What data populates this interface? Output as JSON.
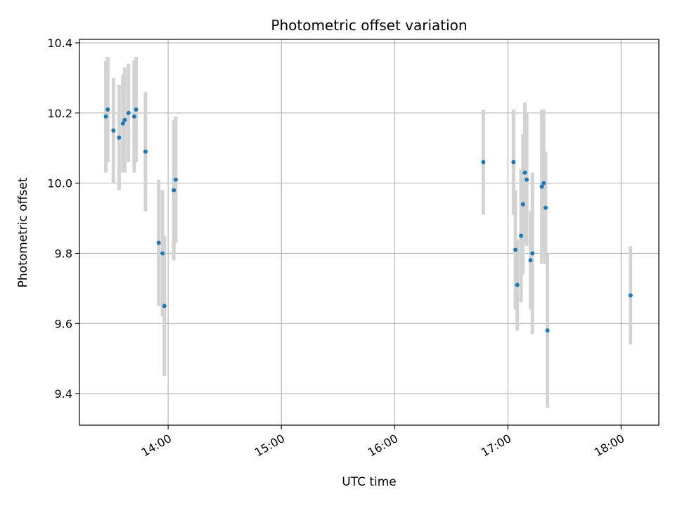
{
  "chart_data": {
    "type": "scatter",
    "title": "Photometric offset variation",
    "xlabel": "UTC time",
    "ylabel": "Photometric offset",
    "x_tick_labels": [
      "14:00",
      "15:00",
      "16:00",
      "17:00",
      "18:00"
    ],
    "x_ticks": [
      "14:00",
      "15:00",
      "16:00",
      "17:00",
      "18:00"
    ],
    "xlim": [
      "13:13",
      "18:20"
    ],
    "y_ticks": [
      9.4,
      9.6,
      9.8,
      10.0,
      10.2,
      10.4
    ],
    "y_tick_labels": [
      "9.4",
      "9.6",
      "9.8",
      "10.0",
      "10.2",
      "10.4"
    ],
    "ylim": [
      9.31,
      10.41
    ],
    "grid": true,
    "marker_color": "#1f77b4",
    "errorbar_color": "#d3d3d3",
    "points": [
      {
        "x": "13:27",
        "y": 10.19,
        "err": 0.16
      },
      {
        "x": "13:28",
        "y": 10.21,
        "err": 0.15
      },
      {
        "x": "13:31",
        "y": 10.15,
        "err": 0.15
      },
      {
        "x": "13:34",
        "y": 10.13,
        "err": 0.15
      },
      {
        "x": "13:36",
        "y": 10.17,
        "err": 0.14
      },
      {
        "x": "13:37",
        "y": 10.18,
        "err": 0.15
      },
      {
        "x": "13:39",
        "y": 10.2,
        "err": 0.14
      },
      {
        "x": "13:42",
        "y": 10.19,
        "err": 0.16
      },
      {
        "x": "13:43",
        "y": 10.21,
        "err": 0.15
      },
      {
        "x": "13:48",
        "y": 10.09,
        "err": 0.17
      },
      {
        "x": "13:55",
        "y": 9.83,
        "err": 0.18
      },
      {
        "x": "13:57",
        "y": 9.8,
        "err": 0.18
      },
      {
        "x": "13:58",
        "y": 9.65,
        "err": 0.2
      },
      {
        "x": "14:03",
        "y": 9.98,
        "err": 0.2
      },
      {
        "x": "14:04",
        "y": 10.01,
        "err": 0.18
      },
      {
        "x": "16:47",
        "y": 10.06,
        "err": 0.15
      },
      {
        "x": "17:03",
        "y": 10.06,
        "err": 0.15
      },
      {
        "x": "17:04",
        "y": 9.81,
        "err": 0.17
      },
      {
        "x": "17:05",
        "y": 9.71,
        "err": 0.13
      },
      {
        "x": "17:07",
        "y": 9.85,
        "err": 0.19
      },
      {
        "x": "17:08",
        "y": 9.94,
        "err": 0.2
      },
      {
        "x": "17:09",
        "y": 10.03,
        "err": 0.2
      },
      {
        "x": "17:10",
        "y": 10.01,
        "err": 0.19
      },
      {
        "x": "17:12",
        "y": 9.78,
        "err": 0.14
      },
      {
        "x": "17:13",
        "y": 9.8,
        "err": 0.23
      },
      {
        "x": "17:18",
        "y": 9.99,
        "err": 0.22
      },
      {
        "x": "17:19",
        "y": 10.0,
        "err": 0.21
      },
      {
        "x": "17:20",
        "y": 9.93,
        "err": 0.16
      },
      {
        "x": "17:21",
        "y": 9.58,
        "err": 0.22
      },
      {
        "x": "18:05",
        "y": 9.68,
        "err": 0.14
      }
    ]
  }
}
